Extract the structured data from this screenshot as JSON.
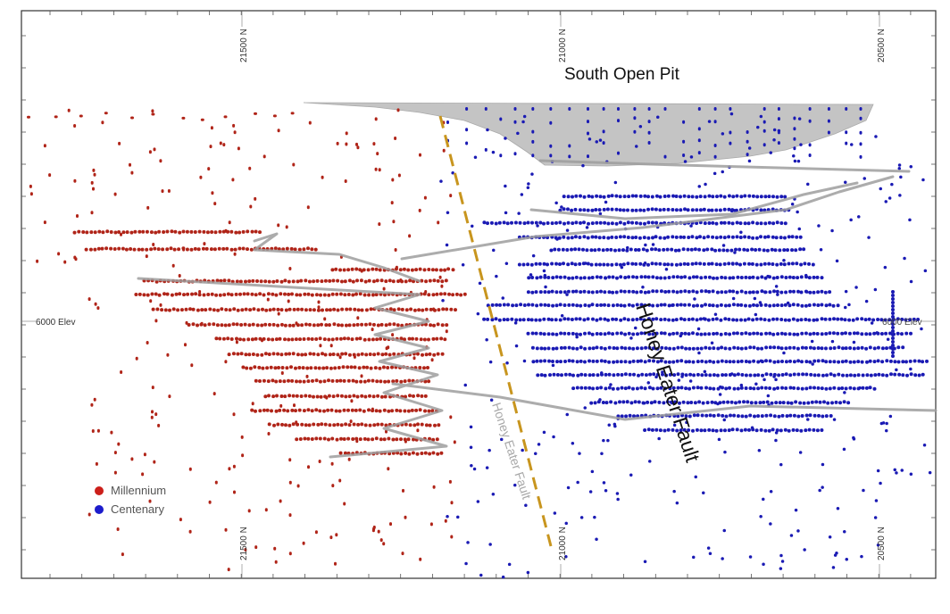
{
  "title": "South Open Pit",
  "fault_labels": {
    "main": "Honey Eater Fault",
    "trace": "Honey Eater Fault"
  },
  "elevation_label_left": "6000 Elev",
  "elevation_label_right": "6000 Elev",
  "grid_labels": {
    "top": [
      "21500 N",
      "21000 N",
      "20500 N"
    ],
    "bottom": [
      "21500 N",
      "21000 N",
      "20500 N"
    ]
  },
  "legend": {
    "items": [
      {
        "label": "Millennium",
        "color": "#cc1f1a"
      },
      {
        "label": "Centenary",
        "color": "#1c1ccc"
      }
    ]
  },
  "colors": {
    "millennium": "#b02418",
    "centenary": "#1a1ab4",
    "pit": "#bdbdbd",
    "drives": "#9e9e9e",
    "fault_trace": "#c8951e",
    "border": "#333333"
  }
}
